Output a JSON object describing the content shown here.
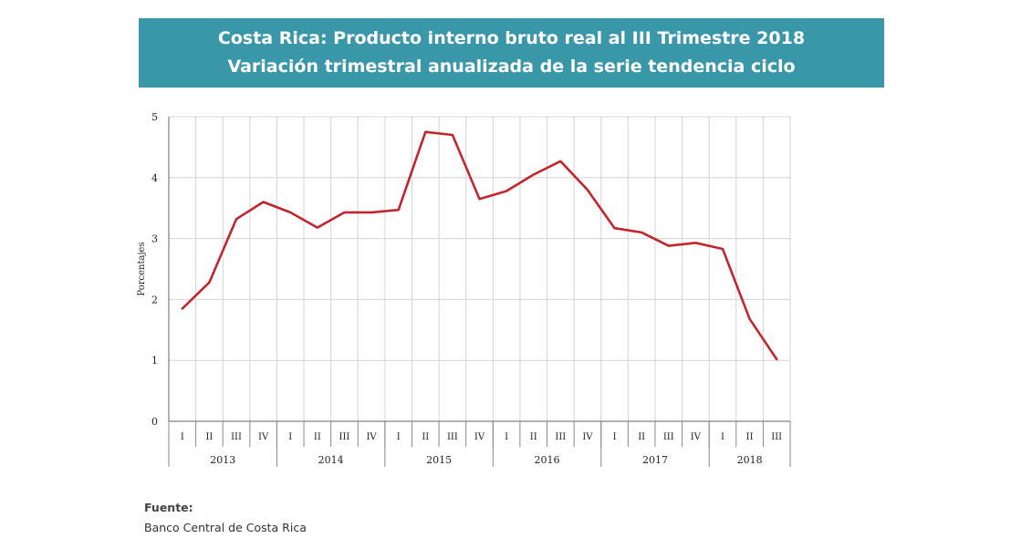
{
  "header": {
    "title": "Costa Rica: Producto interno bruto real al III Trimestre 2018",
    "subtitle": "Variación trimestral anualizada de la serie tendencia ciclo"
  },
  "source": {
    "label": "Fuente:",
    "text": "Banco Central de Costa Rica"
  },
  "chart_data": {
    "type": "line",
    "title": "Costa Rica: Producto interno bruto real al III Trimestre 2018",
    "subtitle": "Variación trimestral anualizada de la serie tendencia ciclo",
    "ylabel": "Porcentajes",
    "xlabel": "",
    "ylim": [
      0,
      5
    ],
    "yticks": [
      0,
      1,
      2,
      3,
      4,
      5
    ],
    "grid": true,
    "quarters": [
      "I",
      "II",
      "III",
      "IV",
      "I",
      "II",
      "III",
      "IV",
      "I",
      "II",
      "III",
      "IV",
      "I",
      "II",
      "III",
      "IV",
      "I",
      "II",
      "III",
      "IV",
      "I",
      "II",
      "III"
    ],
    "years": [
      {
        "label": "2013",
        "count": 4
      },
      {
        "label": "2014",
        "count": 4
      },
      {
        "label": "2015",
        "count": 4
      },
      {
        "label": "2016",
        "count": 4
      },
      {
        "label": "2017",
        "count": 4
      },
      {
        "label": "2018",
        "count": 3
      }
    ],
    "series": [
      {
        "color": "#c0272d",
        "values": [
          1.85,
          2.28,
          3.32,
          3.6,
          3.43,
          3.18,
          3.43,
          3.43,
          3.47,
          4.75,
          4.7,
          3.65,
          3.78,
          4.05,
          4.27,
          3.8,
          3.17,
          3.1,
          2.88,
          2.93,
          2.83,
          1.68,
          1.02
        ]
      }
    ]
  }
}
